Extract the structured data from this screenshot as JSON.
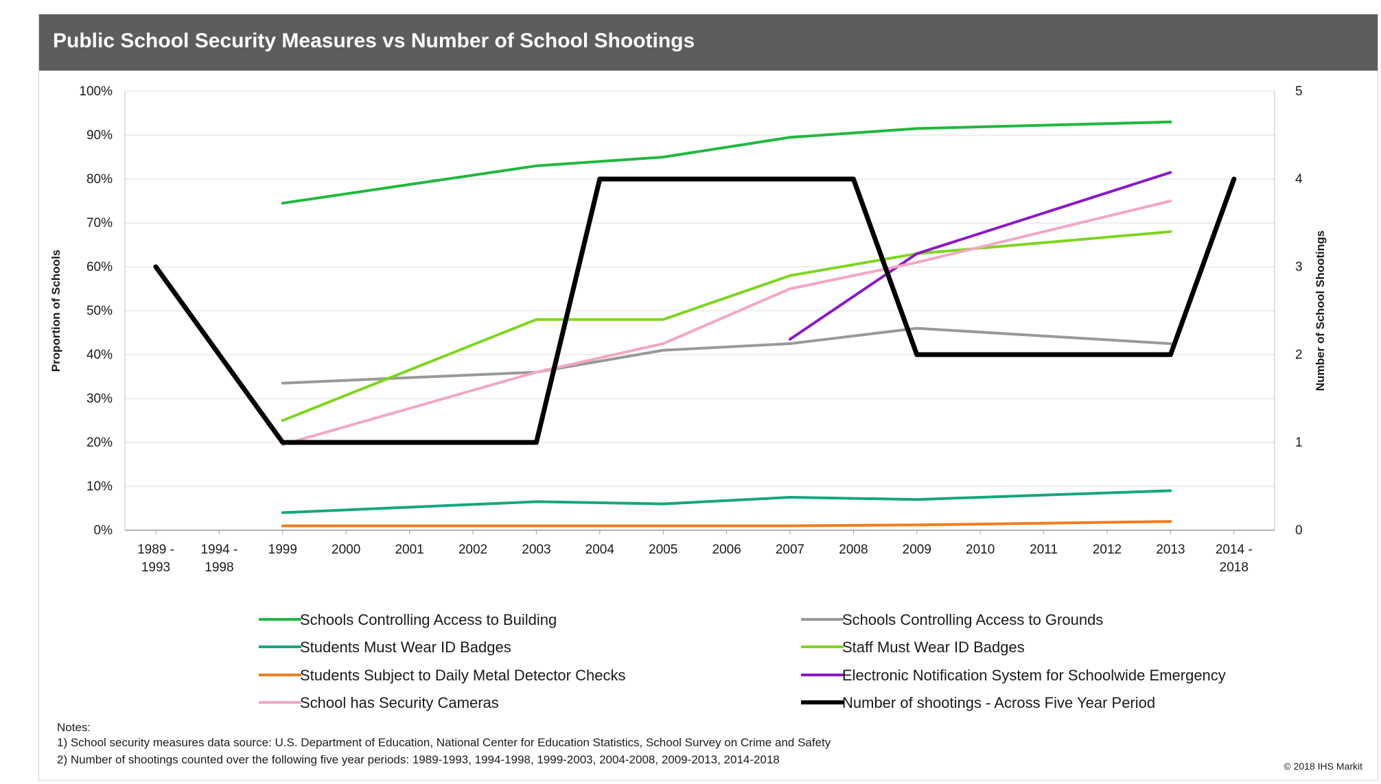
{
  "title": "Public School Security Measures vs Number of School Shootings",
  "notes": {
    "heading": "Notes:",
    "lines": [
      "1) School security measures data source: U.S. Department of Education, National Center for Education Statistics, School Survey on Crime and Safety",
      "2) Number of shootings counted over the following five year periods: 1989-1993, 1994-1998, 1999-2003, 2004-2008, 2009-2013, 2014-2018"
    ]
  },
  "copyright": "© 2018 IHS Markit",
  "chart_data": {
    "type": "line",
    "title": "Public School Security Measures vs Number of School Shootings",
    "categories": [
      "1989 - 1993",
      "1994 - 1998",
      "1999",
      "2000",
      "2001",
      "2002",
      "2003",
      "2004",
      "2005",
      "2006",
      "2007",
      "2008",
      "2009",
      "2010",
      "2011",
      "2012",
      "2013",
      "2014 - 2018"
    ],
    "ylabel": "Proportion of Schools",
    "y2label": "Number of School Shootings",
    "ylim": [
      0,
      100
    ],
    "y2lim": [
      0,
      5
    ],
    "yticks": [
      "0%",
      "10%",
      "20%",
      "30%",
      "40%",
      "50%",
      "60%",
      "70%",
      "80%",
      "90%",
      "100%"
    ],
    "y2ticks": [
      "0",
      "1",
      "2",
      "3",
      "4",
      "5"
    ],
    "grid": true,
    "legend_position": "bottom",
    "series": [
      {
        "name": "Schools Controlling Access to Building",
        "color": "#1fb83f",
        "axis": "left",
        "points": [
          {
            "x": "1999",
            "y": 74.5
          },
          {
            "x": "2003",
            "y": 83
          },
          {
            "x": "2005",
            "y": 85
          },
          {
            "x": "2007",
            "y": 89.5
          },
          {
            "x": "2009",
            "y": 91.5
          },
          {
            "x": "2013",
            "y": 93
          }
        ]
      },
      {
        "name": "Schools Controlling Access to Grounds",
        "color": "#999999",
        "axis": "left",
        "points": [
          {
            "x": "1999",
            "y": 33.5
          },
          {
            "x": "2003",
            "y": 36
          },
          {
            "x": "2005",
            "y": 41
          },
          {
            "x": "2007",
            "y": 42.5
          },
          {
            "x": "2009",
            "y": 46
          },
          {
            "x": "2013",
            "y": 42.5
          }
        ]
      },
      {
        "name": "Students Must Wear ID Badges",
        "color": "#14a77c",
        "axis": "left",
        "points": [
          {
            "x": "1999",
            "y": 4
          },
          {
            "x": "2003",
            "y": 6.5
          },
          {
            "x": "2005",
            "y": 6
          },
          {
            "x": "2007",
            "y": 7.5
          },
          {
            "x": "2009",
            "y": 7
          },
          {
            "x": "2013",
            "y": 9
          }
        ]
      },
      {
        "name": "Staff Must Wear ID Badges",
        "color": "#7ed51f",
        "axis": "left",
        "points": [
          {
            "x": "1999",
            "y": 25
          },
          {
            "x": "2003",
            "y": 48
          },
          {
            "x": "2005",
            "y": 48
          },
          {
            "x": "2007",
            "y": 58
          },
          {
            "x": "2009",
            "y": 63
          },
          {
            "x": "2013",
            "y": 68
          }
        ]
      },
      {
        "name": "Students Subject to Daily Metal Detector Checks",
        "color": "#f07d1e",
        "axis": "left",
        "points": [
          {
            "x": "1999",
            "y": 1
          },
          {
            "x": "2003",
            "y": 1
          },
          {
            "x": "2005",
            "y": 1
          },
          {
            "x": "2007",
            "y": 1
          },
          {
            "x": "2009",
            "y": 1.2
          },
          {
            "x": "2013",
            "y": 2
          }
        ]
      },
      {
        "name": "Electronic Notification System for Schoolwide Emergency",
        "color": "#8a18c9",
        "axis": "left",
        "points": [
          {
            "x": "2007",
            "y": 43.5
          },
          {
            "x": "2009",
            "y": 63
          },
          {
            "x": "2013",
            "y": 81.5
          }
        ]
      },
      {
        "name": "School has Security Cameras",
        "color": "#f3a6c6",
        "axis": "left",
        "points": [
          {
            "x": "1999",
            "y": 19.5
          },
          {
            "x": "2003",
            "y": 36
          },
          {
            "x": "2005",
            "y": 42.5
          },
          {
            "x": "2007",
            "y": 55
          },
          {
            "x": "2009",
            "y": 61
          },
          {
            "x": "2013",
            "y": 75
          }
        ]
      },
      {
        "name": "Number of shootings - Across Five Year Period",
        "color": "#000000",
        "axis": "right",
        "points": [
          {
            "x": "1989 - 1993",
            "y": 3
          },
          {
            "x": "1999",
            "y": 1
          },
          {
            "x": "2003",
            "y": 1
          },
          {
            "x": "2004",
            "y": 4
          },
          {
            "x": "2008",
            "y": 4
          },
          {
            "x": "2009",
            "y": 2
          },
          {
            "x": "2013",
            "y": 2
          },
          {
            "x": "2014 - 2018",
            "y": 4
          }
        ]
      }
    ]
  }
}
